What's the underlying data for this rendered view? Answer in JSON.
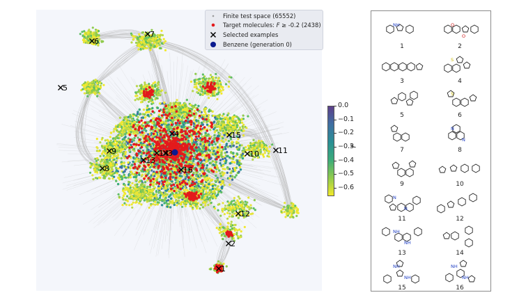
{
  "legend": {
    "items": [
      {
        "label": "Finite test space (65552)",
        "marker": "dot-small",
        "color": "#9a9a9a"
      },
      {
        "label_prefix": "Target molecules: ",
        "label_var": "F",
        "label_suffix": " ≥ -0.2 (2438)",
        "marker": "dot",
        "color": "#e31a1c"
      },
      {
        "label": "Selected examples",
        "marker": "cross-icon",
        "color": "#000000"
      },
      {
        "label": "Benzene (generation 0)",
        "marker": "dot-large",
        "color": "#0a1a8f"
      }
    ]
  },
  "colorbar": {
    "title": "F",
    "ticks": [
      "0.0",
      "−0.1",
      "−0.2",
      "−0.3",
      "−0.4",
      "−0.5",
      "−0.6"
    ],
    "range": [
      -0.65,
      0.0
    ],
    "colors": [
      "#5d3f8a",
      "#3f6fa2",
      "#2a8f95",
      "#3cab7a",
      "#8fcb4d",
      "#f1e82b"
    ]
  },
  "selected_examples": [
    "1",
    "2",
    "3",
    "4",
    "5",
    "6",
    "7",
    "8",
    "9",
    "10",
    "11",
    "12",
    "13",
    "14",
    "15",
    "16"
  ],
  "molecules": [
    {
      "number": "1",
      "heteroatoms": "NH"
    },
    {
      "number": "2",
      "heteroatoms": "O O"
    },
    {
      "number": "3",
      "heteroatoms": ""
    },
    {
      "number": "4",
      "heteroatoms": "S"
    },
    {
      "number": "5",
      "heteroatoms": ""
    },
    {
      "number": "6",
      "heteroatoms": "S"
    },
    {
      "number": "7",
      "heteroatoms": ""
    },
    {
      "number": "8",
      "heteroatoms": "N N"
    },
    {
      "number": "9",
      "heteroatoms": ""
    },
    {
      "number": "10",
      "heteroatoms": ""
    },
    {
      "number": "11",
      "heteroatoms": "N N"
    },
    {
      "number": "12",
      "heteroatoms": ""
    },
    {
      "number": "13",
      "heteroatoms": "NH NH"
    },
    {
      "number": "14",
      "heteroatoms": ""
    },
    {
      "number": "15",
      "heteroatoms": "NH NH"
    },
    {
      "number": "16",
      "heteroatoms": "NH NH"
    }
  ]
}
